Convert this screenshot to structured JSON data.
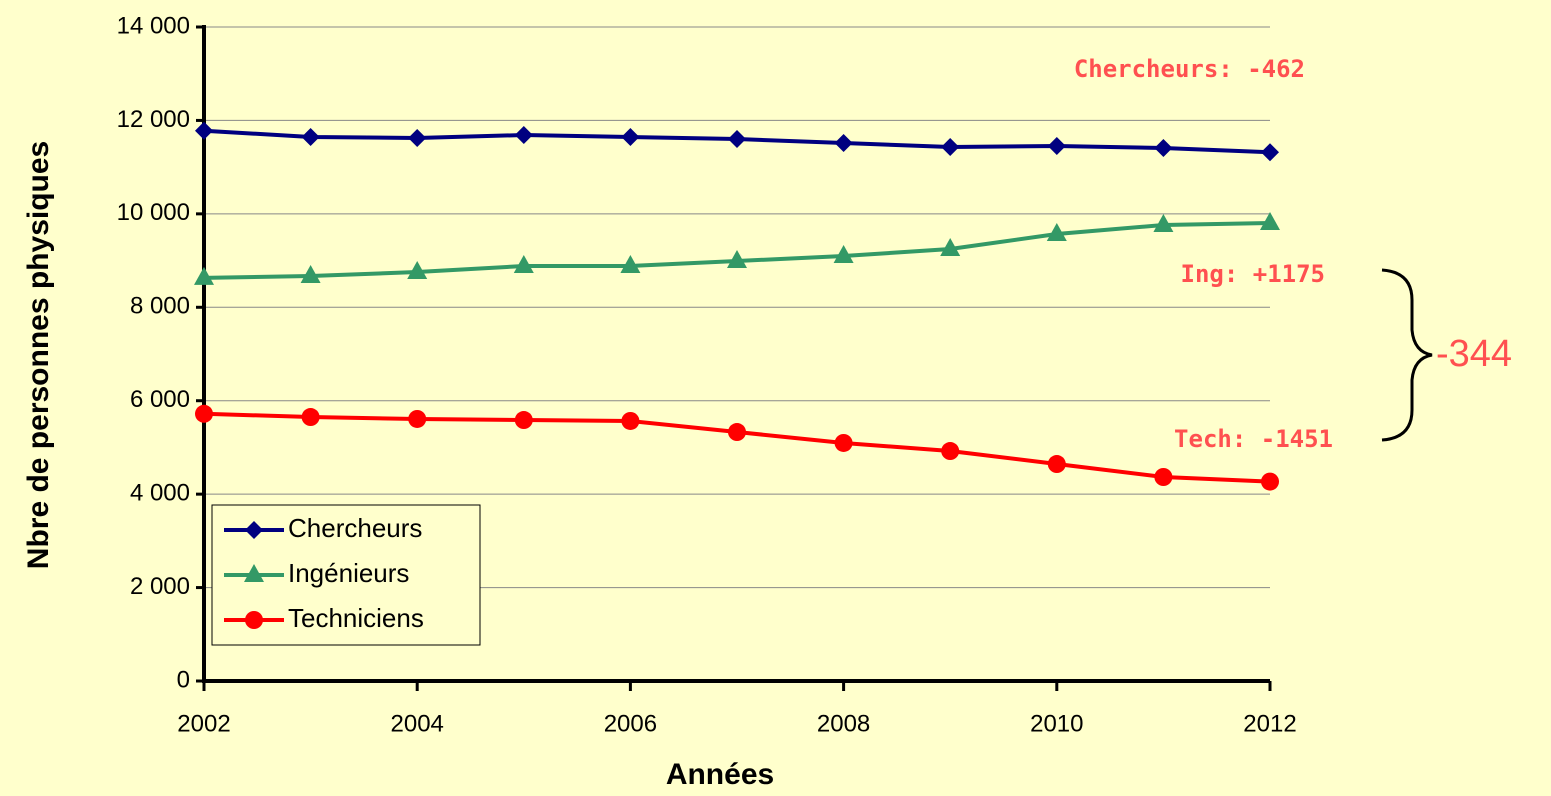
{
  "chart_data": {
    "type": "line",
    "x": [
      2002,
      2003,
      2004,
      2005,
      2006,
      2007,
      2008,
      2009,
      2010,
      2011,
      2012
    ],
    "series": [
      {
        "name": "Chercheurs",
        "color": "#000080",
        "marker": "diamond",
        "values": [
          11780,
          11645,
          11624,
          11688,
          11645,
          11602,
          11517,
          11431,
          11453,
          11410,
          11318
        ]
      },
      {
        "name": "Ingénieurs",
        "color": "#339966",
        "marker": "triangle",
        "values": [
          8630,
          8670,
          8755,
          8884,
          8884,
          8991,
          9098,
          9248,
          9569,
          9761,
          9805
        ]
      },
      {
        "name": "Techniciens",
        "color": "#ff0000",
        "marker": "circle",
        "values": [
          5720,
          5651,
          5609,
          5587,
          5566,
          5330,
          5095,
          4923,
          4645,
          4367,
          4269
        ]
      }
    ],
    "xlim": [
      2002,
      2012
    ],
    "xticks": [
      2002,
      2004,
      2006,
      2008,
      2010,
      2012
    ],
    "ylim": [
      0,
      14000
    ],
    "yticks": [
      0,
      {
        "value": 2000,
        "label": "2 000"
      },
      {
        "value": 4000,
        "label": "4 000"
      },
      {
        "value": 6000,
        "label": "6 000"
      },
      {
        "value": 8000,
        "label": "8 000"
      },
      {
        "value": 10000,
        "label": "10 000"
      },
      {
        "value": 12000,
        "label": "12 000"
      },
      {
        "value": 14000,
        "label": "14 000"
      }
    ],
    "grid": true,
    "xlabel": "Années",
    "ylabel": "Nbre de  personnes physiques",
    "legend_position": "lower left",
    "annotations": [
      "Chercheurs: -462",
      "Ing: +1175",
      "Tech: -1451",
      "-344"
    ]
  }
}
